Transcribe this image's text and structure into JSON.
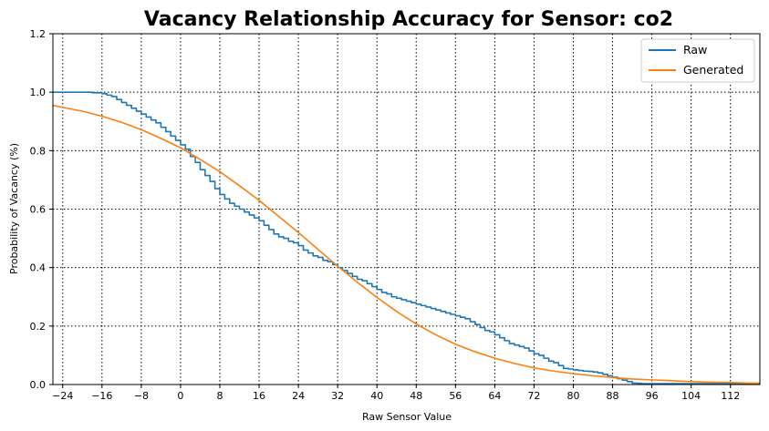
{
  "chart_data": {
    "type": "line",
    "title": "Vacancy Relationship Accuracy for Sensor: co2",
    "xlabel": "Raw Sensor Value",
    "ylabel": "Probability of Vacancy (%)",
    "xlim": [
      -26,
      118
    ],
    "ylim": [
      0,
      1.2
    ],
    "xticks": [
      -24,
      -16,
      -8,
      0,
      8,
      16,
      24,
      32,
      40,
      48,
      56,
      64,
      72,
      80,
      88,
      96,
      104,
      112
    ],
    "yticks": [
      0.0,
      0.2,
      0.4,
      0.6,
      0.8,
      1.0,
      1.2
    ],
    "grid": true,
    "legend_position": "top-right",
    "series": [
      {
        "name": "Raw",
        "color": "#1f77b4",
        "style": "step",
        "x": [
          -26,
          -20,
          -18,
          -16,
          -15,
          -14,
          -13,
          -12,
          -11,
          -10,
          -9,
          -8,
          -7,
          -6,
          -5,
          -4,
          -3,
          -2,
          -1,
          0,
          1,
          2,
          3,
          4,
          5,
          6,
          7,
          8,
          9,
          10,
          11,
          12,
          13,
          14,
          15,
          16,
          17,
          18,
          19,
          20,
          21,
          22,
          23,
          24,
          25,
          26,
          27,
          28,
          29,
          30,
          31,
          32,
          33,
          34,
          35,
          36,
          37,
          38,
          39,
          40,
          41,
          42,
          43,
          44,
          45,
          46,
          47,
          48,
          49,
          50,
          51,
          52,
          53,
          54,
          55,
          56,
          57,
          58,
          59,
          60,
          61,
          62,
          63,
          64,
          65,
          66,
          67,
          68,
          69,
          70,
          71,
          72,
          73,
          74,
          75,
          76,
          77,
          78,
          79,
          80,
          81,
          82,
          83,
          84,
          85,
          86,
          87,
          88,
          89,
          90,
          91,
          92,
          93,
          94,
          95,
          96,
          100,
          110,
          118
        ],
        "y": [
          1.0,
          1.0,
          0.998,
          0.995,
          0.99,
          0.985,
          0.975,
          0.965,
          0.955,
          0.945,
          0.935,
          0.925,
          0.915,
          0.905,
          0.895,
          0.88,
          0.865,
          0.85,
          0.835,
          0.82,
          0.805,
          0.78,
          0.76,
          0.735,
          0.715,
          0.695,
          0.67,
          0.65,
          0.635,
          0.62,
          0.61,
          0.6,
          0.59,
          0.58,
          0.57,
          0.56,
          0.545,
          0.53,
          0.515,
          0.505,
          0.5,
          0.49,
          0.485,
          0.475,
          0.46,
          0.45,
          0.44,
          0.435,
          0.425,
          0.42,
          0.41,
          0.4,
          0.39,
          0.38,
          0.37,
          0.36,
          0.355,
          0.345,
          0.335,
          0.325,
          0.315,
          0.31,
          0.3,
          0.295,
          0.29,
          0.285,
          0.28,
          0.275,
          0.27,
          0.265,
          0.26,
          0.255,
          0.25,
          0.245,
          0.24,
          0.235,
          0.23,
          0.225,
          0.215,
          0.205,
          0.195,
          0.185,
          0.18,
          0.17,
          0.16,
          0.15,
          0.14,
          0.135,
          0.13,
          0.125,
          0.115,
          0.105,
          0.1,
          0.09,
          0.08,
          0.075,
          0.065,
          0.055,
          0.053,
          0.05,
          0.048,
          0.046,
          0.045,
          0.043,
          0.04,
          0.035,
          0.03,
          0.025,
          0.02,
          0.015,
          0.01,
          0.005,
          0.004,
          0.003,
          0.003,
          0.003,
          0.003,
          0.003,
          0.003
        ]
      },
      {
        "name": "Generated",
        "color": "#ff7f0e",
        "style": "line",
        "x": [
          -26,
          -24,
          -20,
          -16,
          -12,
          -8,
          -4,
          0,
          4,
          8,
          12,
          16,
          20,
          24,
          28,
          32,
          36,
          40,
          44,
          48,
          52,
          56,
          60,
          64,
          68,
          72,
          76,
          80,
          84,
          88,
          92,
          96,
          100,
          104,
          108,
          112,
          116,
          118
        ],
        "y": [
          0.955,
          0.948,
          0.935,
          0.918,
          0.897,
          0.872,
          0.842,
          0.81,
          0.77,
          0.728,
          0.68,
          0.63,
          0.575,
          0.52,
          0.462,
          0.405,
          0.35,
          0.298,
          0.25,
          0.207,
          0.17,
          0.138,
          0.112,
          0.09,
          0.072,
          0.057,
          0.046,
          0.037,
          0.03,
          0.024,
          0.019,
          0.016,
          0.013,
          0.01,
          0.008,
          0.007,
          0.005,
          0.005
        ]
      }
    ]
  }
}
